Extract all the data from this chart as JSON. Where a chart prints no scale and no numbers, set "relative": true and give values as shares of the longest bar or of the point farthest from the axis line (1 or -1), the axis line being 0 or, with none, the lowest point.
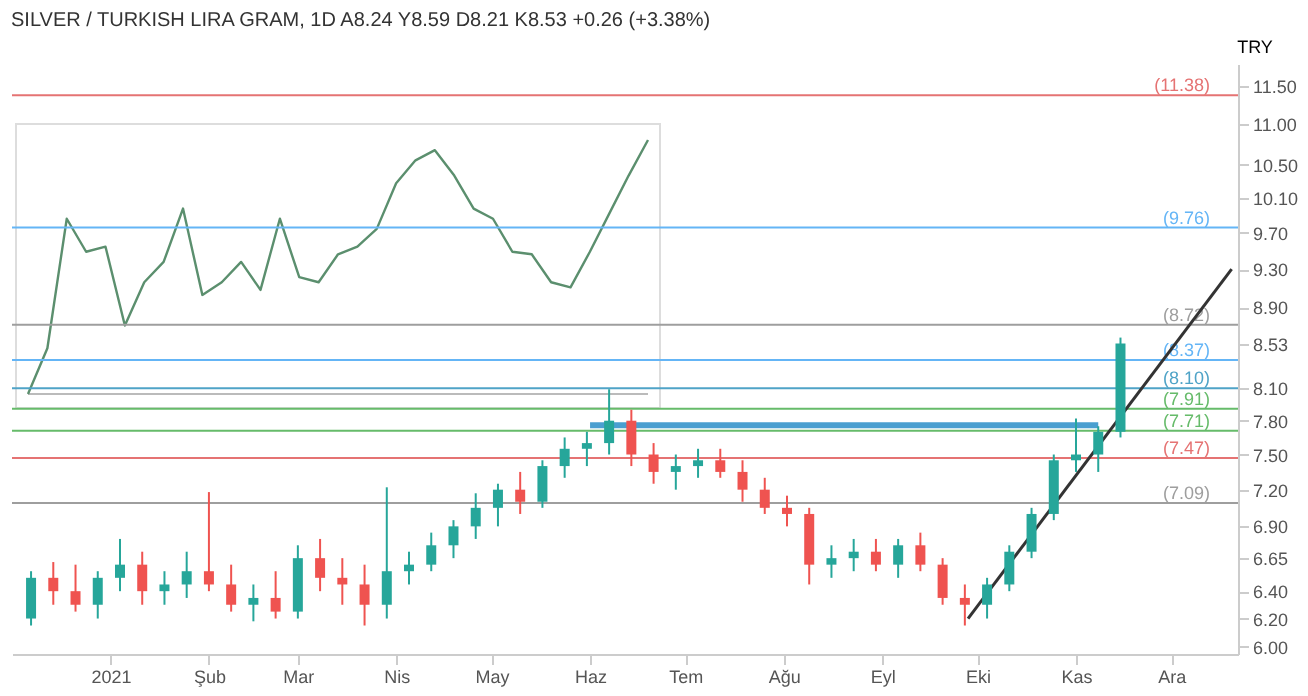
{
  "chart_data": [
    {
      "type": "candlestick",
      "title": "SILVER / TURKISH LIRA GRAM, 1D  A8.24 Y8.59 D8.21 K8.53 +0.26 (+3.38%)",
      "ylabel": "TRY",
      "log": true,
      "grid": false,
      "x": [
        "2020-12-07",
        "2020-12-14",
        "2020-12-21",
        "2020-12-28",
        "2021-01-04",
        "2021-01-11",
        "2021-01-18",
        "2021-01-25",
        "2021-02-01",
        "2021-02-08",
        "2021-02-15",
        "2021-02-22",
        "2021-03-01",
        "2021-03-08",
        "2021-03-15",
        "2021-03-22",
        "2021-03-29",
        "2021-04-05",
        "2021-04-12",
        "2021-04-19",
        "2021-04-26",
        "2021-05-03",
        "2021-05-10",
        "2021-05-17",
        "2021-05-24",
        "2021-05-31",
        "2021-06-07",
        "2021-06-14",
        "2021-06-21",
        "2021-06-28",
        "2021-07-05",
        "2021-07-12",
        "2021-07-19",
        "2021-07-26",
        "2021-08-02",
        "2021-08-09",
        "2021-08-16",
        "2021-08-23",
        "2021-08-30",
        "2021-09-06",
        "2021-09-13",
        "2021-09-20",
        "2021-09-27",
        "2021-10-04",
        "2021-10-11",
        "2021-10-18",
        "2021-10-25",
        "2021-11-01",
        "2021-11-08",
        "2021-11-15"
      ],
      "ohlc": [
        [
          6.2,
          6.55,
          6.15,
          6.5
        ],
        [
          6.5,
          6.62,
          6.3,
          6.4
        ],
        [
          6.4,
          6.6,
          6.25,
          6.3
        ],
        [
          6.3,
          6.55,
          6.2,
          6.5
        ],
        [
          6.5,
          6.8,
          6.4,
          6.6
        ],
        [
          6.6,
          6.7,
          6.3,
          6.4
        ],
        [
          6.4,
          6.55,
          6.3,
          6.45
        ],
        [
          6.45,
          6.7,
          6.35,
          6.55
        ],
        [
          6.55,
          7.18,
          6.4,
          6.45
        ],
        [
          6.45,
          6.6,
          6.25,
          6.3
        ],
        [
          6.3,
          6.45,
          6.18,
          6.35
        ],
        [
          6.35,
          6.55,
          6.2,
          6.25
        ],
        [
          6.25,
          6.75,
          6.2,
          6.65
        ],
        [
          6.65,
          6.8,
          6.4,
          6.5
        ],
        [
          6.5,
          6.65,
          6.3,
          6.45
        ],
        [
          6.45,
          6.6,
          6.15,
          6.3
        ],
        [
          6.3,
          7.22,
          6.2,
          6.55
        ],
        [
          6.55,
          6.7,
          6.45,
          6.6
        ],
        [
          6.6,
          6.85,
          6.55,
          6.75
        ],
        [
          6.75,
          6.95,
          6.65,
          6.9
        ],
        [
          6.9,
          7.17,
          6.8,
          7.05
        ],
        [
          7.05,
          7.25,
          6.9,
          7.2
        ],
        [
          7.2,
          7.35,
          7.0,
          7.1
        ],
        [
          7.1,
          7.45,
          7.05,
          7.4
        ],
        [
          7.4,
          7.65,
          7.3,
          7.55
        ],
        [
          7.55,
          7.7,
          7.4,
          7.6
        ],
        [
          7.6,
          8.09,
          7.5,
          7.8
        ],
        [
          7.8,
          7.9,
          7.4,
          7.5
        ],
        [
          7.5,
          7.6,
          7.25,
          7.35
        ],
        [
          7.35,
          7.5,
          7.2,
          7.4
        ],
        [
          7.4,
          7.55,
          7.3,
          7.45
        ],
        [
          7.45,
          7.55,
          7.3,
          7.35
        ],
        [
          7.35,
          7.45,
          7.1,
          7.2
        ],
        [
          7.2,
          7.3,
          7.0,
          7.05
        ],
        [
          7.05,
          7.15,
          6.9,
          7.0
        ],
        [
          7.0,
          7.05,
          6.45,
          6.6
        ],
        [
          6.6,
          6.75,
          6.5,
          6.65
        ],
        [
          6.65,
          6.8,
          6.55,
          6.7
        ],
        [
          6.7,
          6.8,
          6.55,
          6.6
        ],
        [
          6.6,
          6.8,
          6.5,
          6.75
        ],
        [
          6.75,
          6.85,
          6.55,
          6.6
        ],
        [
          6.6,
          6.65,
          6.3,
          6.35
        ],
        [
          6.35,
          6.45,
          6.15,
          6.3
        ],
        [
          6.3,
          6.5,
          6.2,
          6.45
        ],
        [
          6.45,
          6.75,
          6.4,
          6.7
        ],
        [
          6.7,
          7.05,
          6.65,
          7.0
        ],
        [
          7.0,
          7.5,
          6.95,
          7.45
        ],
        [
          7.45,
          7.82,
          7.35,
          7.5
        ],
        [
          7.5,
          7.75,
          7.35,
          7.7
        ],
        [
          7.7,
          8.59,
          7.65,
          8.53
        ]
      ],
      "colors": [
        "#26a69a",
        "#ef5350",
        "#ef5350",
        "#26a69a",
        "#26a69a",
        "#ef5350",
        "#26a69a",
        "#26a69a",
        "#ef5350",
        "#ef5350",
        "#26a69a",
        "#ef5350",
        "#26a69a",
        "#ef5350",
        "#ef5350",
        "#ef5350",
        "#26a69a",
        "#26a69a",
        "#26a69a",
        "#26a69a",
        "#26a69a",
        "#26a69a",
        "#ef5350",
        "#26a69a",
        "#26a69a",
        "#26a69a",
        "#26a69a",
        "#ef5350",
        "#ef5350",
        "#26a69a",
        "#26a69a",
        "#ef5350",
        "#ef5350",
        "#ef5350",
        "#ef5350",
        "#ef5350",
        "#26a69a",
        "#26a69a",
        "#ef5350",
        "#26a69a",
        "#ef5350",
        "#ef5350",
        "#ef5350",
        "#26a69a",
        "#26a69a",
        "#26a69a",
        "#26a69a",
        "#26a69a",
        "#26a69a",
        "#26a69a"
      ],
      "xlim": [
        "2020-12-01",
        "2021-12-22"
      ],
      "xticks": [
        {
          "value": "2021-01-01",
          "label": "2021"
        },
        {
          "value": "2021-02-01",
          "label": "Şub"
        },
        {
          "value": "2021-03-01",
          "label": "Mar"
        },
        {
          "value": "2021-04-01",
          "label": "Nis"
        },
        {
          "value": "2021-05-01",
          "label": "May"
        },
        {
          "value": "2021-06-01",
          "label": "Haz"
        },
        {
          "value": "2021-07-01",
          "label": "Tem"
        },
        {
          "value": "2021-08-01",
          "label": "Ağu"
        },
        {
          "value": "2021-09-01",
          "label": "Eyl"
        },
        {
          "value": "2021-10-01",
          "label": "Eki"
        },
        {
          "value": "2021-11-01",
          "label": "Kas"
        },
        {
          "value": "2021-12-01",
          "label": "Ara"
        }
      ],
      "ylim": [
        5.95,
        11.8
      ],
      "yticks": [
        {
          "value": 6,
          "label": "6.00"
        },
        {
          "value": 6.2,
          "label": "6.20"
        },
        {
          "value": 6.4,
          "label": "6.40"
        },
        {
          "value": 6.65,
          "label": "6.65"
        },
        {
          "value": 6.9,
          "label": "6.90"
        },
        {
          "value": 7.2,
          "label": "7.20"
        },
        {
          "value": 7.5,
          "label": "7.50"
        },
        {
          "value": 7.8,
          "label": "7.80"
        },
        {
          "value": 8.1,
          "label": "8.10"
        },
        {
          "value": 8.53,
          "label": "8.53"
        },
        {
          "value": 8.9,
          "label": "8.90"
        },
        {
          "value": 9.3,
          "label": "9.30"
        },
        {
          "value": 9.7,
          "label": "9.70"
        },
        {
          "value": 10.1,
          "label": "10.10"
        },
        {
          "value": 10.5,
          "label": "10.50"
        },
        {
          "value": 11,
          "label": "11.00"
        },
        {
          "value": 11.5,
          "label": "11.50"
        }
      ],
      "ref_lines": [
        {
          "axis": "y",
          "value": 11.38,
          "label": "(11.38)",
          "color": "#e57373"
        },
        {
          "axis": "y",
          "value": 9.76,
          "label": "(9.76)",
          "color": "#64b5f6"
        },
        {
          "axis": "y",
          "value": 8.72,
          "label": "(8.72)",
          "color": "#9e9e9e"
        },
        {
          "axis": "y",
          "value": 8.37,
          "label": "(8.37)",
          "color": "#64b5f6"
        },
        {
          "axis": "y",
          "value": 8.1,
          "label": "(8.10)",
          "color": "#4fa3c7"
        },
        {
          "axis": "y",
          "value": 7.91,
          "label": "(7.91)",
          "color": "#66bb6a"
        },
        {
          "axis": "y",
          "value": 7.71,
          "label": "(7.71)",
          "color": "#66bb6a"
        },
        {
          "axis": "y",
          "value": 7.47,
          "label": "(7.47)",
          "color": "#e57373"
        },
        {
          "axis": "y",
          "value": 7.09,
          "label": "(7.09)",
          "color": "#9e9e9e"
        }
      ],
      "series": [
        {
          "type": "line",
          "color": "#4a9fd0",
          "x": [
            "2021-06-01",
            "2021-11-08"
          ],
          "values": [
            7.76,
            7.76
          ]
        },
        {
          "type": "line",
          "color": "#333333",
          "x": [
            "2021-09-28",
            "2021-12-20"
          ],
          "values": [
            6.2,
            9.3
          ]
        }
      ]
    },
    {
      "type": "line",
      "relative": true,
      "categories": [
        null,
        null,
        null,
        null,
        null,
        null,
        null,
        null,
        null,
        null,
        null,
        null,
        null,
        null,
        null,
        null,
        null,
        null,
        null,
        null,
        null,
        null,
        null,
        null,
        null,
        null,
        null,
        null,
        null,
        null,
        null,
        null,
        null
      ],
      "series": [
        {
          "color": "#5b8f6e",
          "values": [
            0,
            0.18,
            0.69,
            0.56,
            0.58,
            0.27,
            0.44,
            0.52,
            0.73,
            0.39,
            0.44,
            0.52,
            0.41,
            0.69,
            0.46,
            0.44,
            0.55,
            0.58,
            0.65,
            0.83,
            0.92,
            0.96,
            0.86,
            0.73,
            0.69,
            0.56,
            0.55,
            0.44,
            0.42,
            0.56,
            0.71,
            0.86,
            1
          ]
        }
      ]
    }
  ]
}
